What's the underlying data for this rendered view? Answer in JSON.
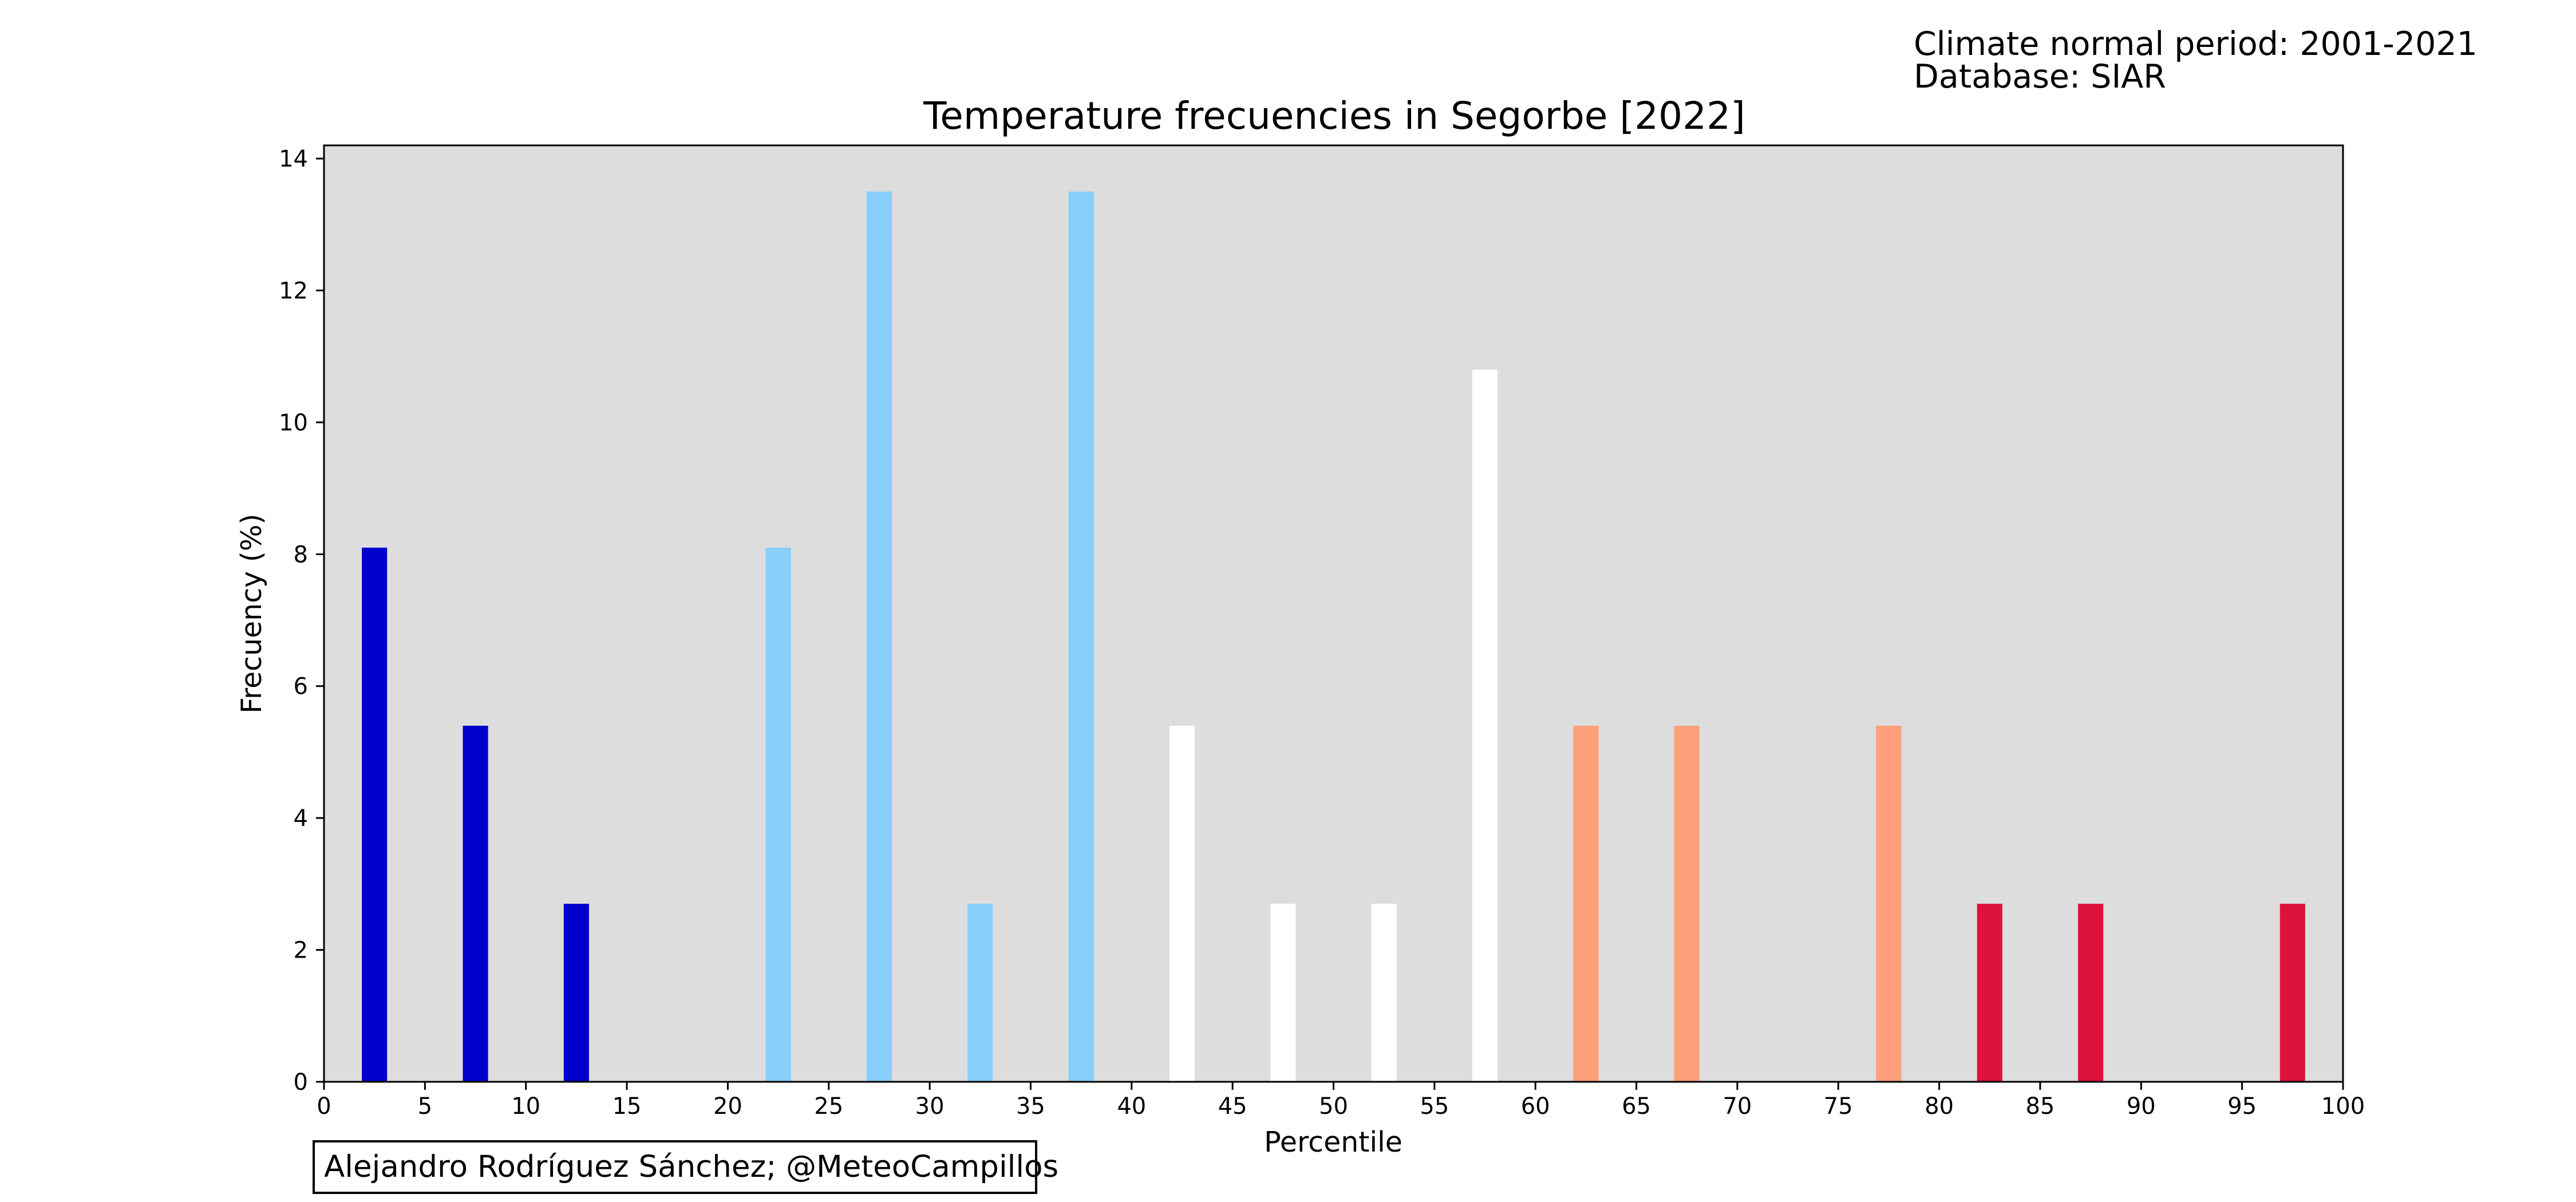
{
  "header": {
    "period_line": "Climate normal period: 2001-2021",
    "database_line": "Database: SIAR"
  },
  "credit": "Alejandro Rodríguez Sánchez; @MeteoCampillos",
  "colors": {
    "plot_background": "#dddddd",
    "very_cold": "#0000cd",
    "cold": "#87cefa",
    "normal": "#ffffff",
    "warm": "#ffa07a",
    "very_warm": "#dc143c"
  },
  "chart_data": {
    "type": "bar",
    "title": "Temperature frecuencies in Segorbe [2022]",
    "xlabel": "Percentile",
    "ylabel": "Frecuency (%)",
    "xlim": [
      0,
      100
    ],
    "ylim": [
      0,
      14.2
    ],
    "bar_width": 1.25,
    "grid": false,
    "x": [
      2.5,
      7.5,
      12.5,
      17.5,
      22.5,
      27.5,
      32.5,
      37.5,
      42.5,
      47.5,
      52.5,
      57.5,
      62.5,
      67.5,
      72.5,
      77.5,
      82.5,
      87.5,
      92.5,
      97.5
    ],
    "values": [
      8.1,
      5.4,
      2.7,
      0,
      8.1,
      13.5,
      2.7,
      13.5,
      5.4,
      2.7,
      2.7,
      10.8,
      5.4,
      5.4,
      0,
      5.4,
      2.7,
      2.7,
      0,
      2.7
    ],
    "bar_colors": [
      "#0000cd",
      "#0000cd",
      "#0000cd",
      "#0000cd",
      "#87cefa",
      "#87cefa",
      "#87cefa",
      "#87cefa",
      "#ffffff",
      "#ffffff",
      "#ffffff",
      "#ffffff",
      "#ffa07a",
      "#ffa07a",
      "#ffa07a",
      "#ffa07a",
      "#dc143c",
      "#dc143c",
      "#dc143c",
      "#dc143c"
    ],
    "xticks": [
      0,
      5,
      10,
      15,
      20,
      25,
      30,
      35,
      40,
      45,
      50,
      55,
      60,
      65,
      70,
      75,
      80,
      85,
      90,
      95,
      100
    ],
    "yticks": [
      0,
      2,
      4,
      6,
      8,
      10,
      12,
      14
    ]
  }
}
